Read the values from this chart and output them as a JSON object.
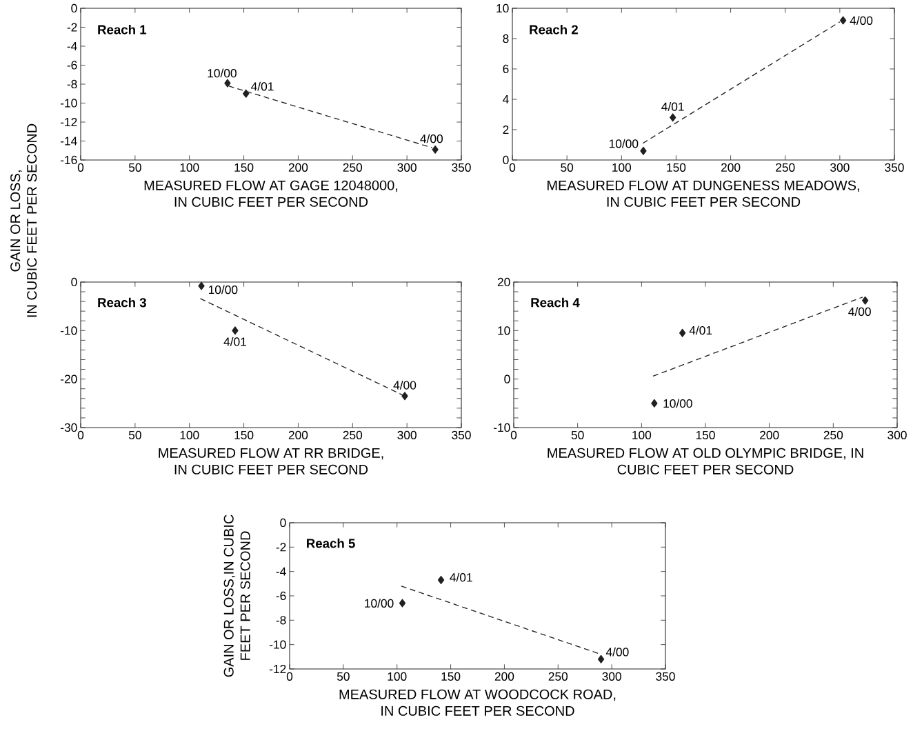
{
  "chart_data": [
    {
      "type": "scatter",
      "title": "Reach 1",
      "xlabel": "MEASURED FLOW AT GAGE 12048000, IN CUBIC FEET PER SECOND",
      "ylabel": "GAIN OR LOSS, IN CUBIC FEET PER SECOND",
      "xlim": [
        0,
        350
      ],
      "ylim": [
        -16,
        0
      ],
      "xticks": [
        0,
        50,
        100,
        150,
        200,
        250,
        300,
        350
      ],
      "yticks": [
        0,
        -2,
        -4,
        -6,
        -8,
        -10,
        -12,
        -14,
        -16
      ],
      "series": [
        {
          "type": "scatter",
          "color": "#231f20",
          "marker": "diamond",
          "x": [
            135,
            152,
            326
          ],
          "values": [
            -7.9,
            -9.0,
            -14.9
          ]
        },
        {
          "type": "line",
          "color": "#231f20",
          "marker": "none",
          "line_style": "dashed",
          "x": [
            136,
            323
          ],
          "values": [
            -8.2,
            -14.7
          ]
        }
      ],
      "annotations": [
        {
          "text": "10/00",
          "x": 135,
          "y": -7.9
        },
        {
          "text": "4/01",
          "x": 152,
          "y": -9.0
        },
        {
          "text": "4/00",
          "x": 326,
          "y": -14.9
        }
      ]
    },
    {
      "type": "scatter",
      "title": "Reach 2",
      "xlabel": "MEASURED FLOW AT DUNGENESS MEADOWS, IN CUBIC FEET PER SECOND",
      "xlim": [
        0,
        350
      ],
      "ylim": [
        0,
        10
      ],
      "xticks": [
        0,
        50,
        100,
        150,
        200,
        250,
        300,
        350
      ],
      "yticks": [
        0,
        2,
        4,
        6,
        8,
        10
      ],
      "series": [
        {
          "type": "scatter",
          "color": "#231f20",
          "marker": "diamond",
          "x": [
            120,
            147,
            303
          ],
          "values": [
            0.6,
            2.8,
            9.2
          ]
        },
        {
          "type": "line",
          "color": "#231f20",
          "marker": "none",
          "line_style": "dashed",
          "x": [
            119.5,
            300
          ],
          "values": [
            1.1,
            9.1
          ]
        }
      ],
      "annotations": [
        {
          "text": "10/00",
          "x": 120,
          "y": 0.6
        },
        {
          "text": "4/01",
          "x": 147,
          "y": 2.8
        },
        {
          "text": "4/00",
          "x": 303,
          "y": 9.2
        }
      ]
    },
    {
      "type": "scatter",
      "title": "Reach 3",
      "xlabel": "MEASURED FLOW AT RR BRIDGE, IN CUBIC FEET PER SECOND",
      "xlim": [
        0,
        350
      ],
      "ylim": [
        -30,
        0
      ],
      "xticks": [
        0,
        50,
        100,
        150,
        200,
        250,
        300,
        350
      ],
      "yticks": [
        0,
        {
          "value": -2,
          "label": null
        },
        {
          "value": -4,
          "label": null
        },
        {
          "value": -6,
          "label": null
        },
        {
          "value": -8,
          "label": null
        },
        -10,
        {
          "value": -12,
          "label": null
        },
        {
          "value": -14,
          "label": null
        },
        {
          "value": -16,
          "label": null
        },
        {
          "value": -18,
          "label": null
        },
        -20,
        {
          "value": -22,
          "label": null
        },
        {
          "value": -24,
          "label": null
        },
        {
          "value": -26,
          "label": null
        },
        {
          "value": -28,
          "label": null
        },
        -30
      ],
      "series": [
        {
          "type": "scatter",
          "color": "#231f20",
          "marker": "diamond",
          "x": [
            111,
            142,
            298
          ],
          "values": [
            -0.8,
            -10,
            -23.5
          ]
        },
        {
          "type": "line",
          "color": "#231f20",
          "marker": "none",
          "line_style": "dashed",
          "x": [
            110,
            297
          ],
          "values": [
            -3.4,
            -23.4
          ]
        }
      ],
      "annotations": [
        {
          "text": "10/00",
          "x": 111,
          "y": -0.8
        },
        {
          "text": "4/01",
          "x": 142,
          "y": -10
        },
        {
          "text": "4/00",
          "x": 298,
          "y": -23.5
        }
      ]
    },
    {
      "type": "scatter",
      "title": "Reach 4",
      "xlabel": "MEASURED FLOW AT OLD OLYMPIC BRIDGE, IN CUBIC FEET PER SECOND",
      "xlim": [
        0,
        300
      ],
      "ylim": [
        -10,
        20
      ],
      "xticks": [
        0,
        50,
        100,
        150,
        200,
        250,
        300
      ],
      "yticks": [
        -10,
        {
          "value": -8,
          "label": null
        },
        {
          "value": -6,
          "label": null
        },
        {
          "value": -4,
          "label": null
        },
        {
          "value": -2,
          "label": null
        },
        0,
        {
          "value": 2,
          "label": null
        },
        {
          "value": 4,
          "label": null
        },
        {
          "value": 6,
          "label": null
        },
        {
          "value": 8,
          "label": null
        },
        10,
        {
          "value": 12,
          "label": null
        },
        {
          "value": 14,
          "label": null
        },
        {
          "value": 16,
          "label": null
        },
        {
          "value": 18,
          "label": null
        },
        20
      ],
      "series": [
        {
          "type": "scatter",
          "color": "#231f20",
          "marker": "diamond",
          "x": [
            110,
            132,
            275
          ],
          "values": [
            -5.0,
            9.5,
            16.2
          ]
        },
        {
          "type": "line",
          "color": "#231f20",
          "marker": "none",
          "line_style": "dashed",
          "x": [
            109,
            273
          ],
          "values": [
            0.6,
            16.9
          ]
        }
      ],
      "annotations": [
        {
          "text": "10/00",
          "x": 110,
          "y": -5.0
        },
        {
          "text": "4/01",
          "x": 132,
          "y": 9.5
        },
        {
          "text": "4/00",
          "x": 275,
          "y": 16.2
        }
      ]
    },
    {
      "type": "scatter",
      "title": "Reach 5",
      "xlabel": "MEASURED FLOW AT WOODCOCK ROAD, IN CUBIC FEET PER SECOND",
      "ylabel": "GAIN OR LOSS,IN CUBIC FEET PER SECOND",
      "xlim": [
        0,
        350
      ],
      "ylim": [
        -12,
        0
      ],
      "xticks": [
        0,
        50,
        100,
        150,
        200,
        250,
        300,
        350
      ],
      "yticks": [
        0,
        -2,
        -4,
        -6,
        -8,
        -10,
        -12
      ],
      "series": [
        {
          "type": "scatter",
          "color": "#231f20",
          "marker": "diamond",
          "x": [
            105,
            141,
            290
          ],
          "values": [
            -6.6,
            -4.7,
            -11.2
          ]
        },
        {
          "type": "line",
          "color": "#231f20",
          "marker": "none",
          "line_style": "dashed",
          "x": [
            104,
            290
          ],
          "values": [
            -5.2,
            -10.8
          ]
        }
      ],
      "annotations": [
        {
          "text": "10/00",
          "x": 105,
          "y": -6.6
        },
        {
          "text": "4/01",
          "x": 141,
          "y": -4.7
        },
        {
          "text": "4/00",
          "x": 290,
          "y": -11.2
        }
      ]
    }
  ]
}
